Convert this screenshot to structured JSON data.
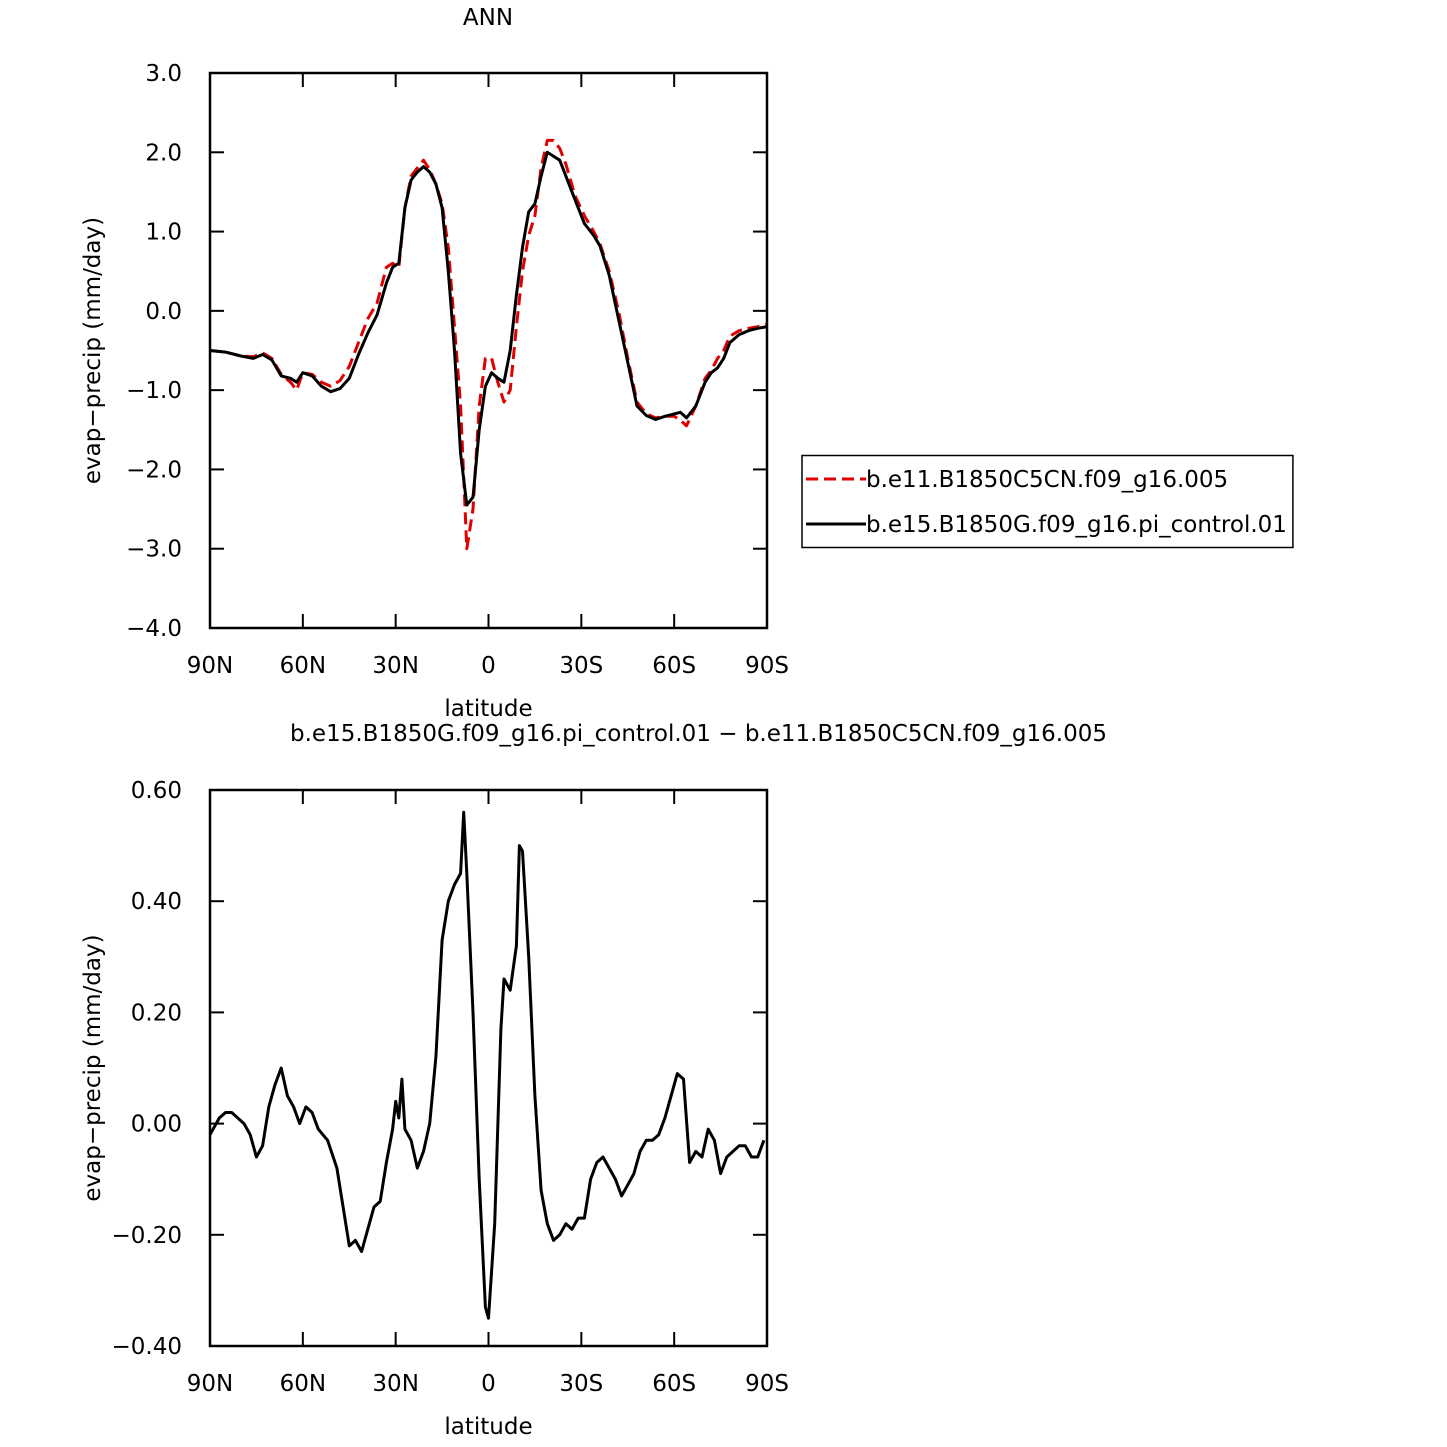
{
  "chart_data": [
    {
      "type": "line",
      "title": "ANN",
      "xlabel": "latitude",
      "ylabel": "evap−precip (mm/day)",
      "x": [
        90,
        85,
        80,
        76,
        73,
        70,
        67,
        64,
        62,
        60,
        57,
        54,
        51,
        48,
        45,
        42,
        39,
        36,
        33,
        31,
        29,
        27,
        25,
        23,
        21,
        19,
        17,
        15,
        13,
        11,
        9,
        7,
        5,
        3,
        1,
        -1,
        -3,
        -5,
        -7,
        -9,
        -11,
        -13,
        -15,
        -17,
        -19,
        -21,
        -23,
        -25,
        -28,
        -31,
        -34,
        -36,
        -39,
        -42,
        -45,
        -48,
        -51,
        -54,
        -57,
        -60,
        -62,
        -64,
        -67,
        -70,
        -72,
        -74,
        -76,
        -78,
        -81,
        -84,
        -87,
        -90
      ],
      "series": [
        {
          "name": "b.e11.B1850C5CN.f09_g16.005",
          "color": "#e00000",
          "linestyle": "dashed",
          "values": [
            -0.5,
            -0.52,
            -0.57,
            -0.58,
            -0.53,
            -0.6,
            -0.8,
            -0.9,
            -1.0,
            -0.78,
            -0.8,
            -0.9,
            -0.95,
            -0.88,
            -0.7,
            -0.4,
            -0.1,
            0.1,
            0.55,
            0.6,
            0.55,
            1.3,
            1.7,
            1.8,
            1.9,
            1.78,
            1.6,
            1.35,
            0.8,
            -0.2,
            -1.2,
            -3.0,
            -2.5,
            -1.2,
            -0.6,
            -0.6,
            -0.9,
            -1.15,
            -1.0,
            -0.2,
            0.5,
            0.95,
            1.2,
            1.8,
            2.15,
            2.15,
            2.05,
            1.85,
            1.45,
            1.2,
            1.0,
            0.85,
            0.5,
            0.0,
            -0.6,
            -1.15,
            -1.3,
            -1.35,
            -1.33,
            -1.33,
            -1.38,
            -1.45,
            -1.2,
            -0.85,
            -0.75,
            -0.6,
            -0.5,
            -0.32,
            -0.25,
            -0.22,
            -0.2,
            -0.17
          ]
        },
        {
          "name": "b.e15.B1850G.f09_g16.pi_control.01",
          "color": "#000000",
          "linestyle": "solid",
          "values": [
            -0.5,
            -0.52,
            -0.57,
            -0.6,
            -0.55,
            -0.62,
            -0.82,
            -0.85,
            -0.9,
            -0.78,
            -0.82,
            -0.95,
            -1.02,
            -0.98,
            -0.85,
            -0.55,
            -0.28,
            -0.05,
            0.35,
            0.55,
            0.6,
            1.3,
            1.65,
            1.75,
            1.82,
            1.75,
            1.6,
            1.3,
            0.5,
            -0.5,
            -1.8,
            -2.45,
            -2.35,
            -1.5,
            -0.95,
            -0.78,
            -0.85,
            -0.9,
            -0.5,
            0.2,
            0.8,
            1.25,
            1.35,
            1.7,
            2.0,
            1.95,
            1.9,
            1.7,
            1.4,
            1.1,
            0.95,
            0.82,
            0.45,
            -0.1,
            -0.65,
            -1.2,
            -1.32,
            -1.37,
            -1.33,
            -1.3,
            -1.28,
            -1.35,
            -1.2,
            -0.9,
            -0.78,
            -0.72,
            -0.6,
            -0.4,
            -0.3,
            -0.25,
            -0.22,
            -0.2
          ]
        }
      ],
      "xlim": [
        90,
        -90
      ],
      "xticks": [
        {
          "value": 90,
          "label": "90N"
        },
        {
          "value": 60,
          "label": "60N"
        },
        {
          "value": 30,
          "label": "30N"
        },
        0,
        {
          "value": -30,
          "label": "30S"
        },
        {
          "value": -60,
          "label": "60S"
        },
        {
          "value": -90,
          "label": "90S"
        }
      ],
      "ylim": [
        -4,
        3
      ],
      "yticks": [
        {
          "value": -4,
          "label": "−4.0"
        },
        {
          "value": -3,
          "label": "−3.0"
        },
        {
          "value": -2,
          "label": "−2.0"
        },
        {
          "value": -1,
          "label": "−1.0"
        },
        {
          "value": 0,
          "label": "0.0"
        },
        {
          "value": 1,
          "label": "1.0"
        },
        {
          "value": 2,
          "label": "2.0"
        },
        {
          "value": 3,
          "label": "3.0"
        }
      ],
      "legend": "right"
    },
    {
      "type": "line",
      "title": "b.e15.B1850G.f09_g16.pi_control.01 − b.e11.B1850C5CN.f09_g16.005",
      "xlabel": "latitude",
      "ylabel": "evap−precip (mm/day)",
      "x": [
        90,
        87,
        85,
        83,
        81,
        79,
        77,
        75,
        73,
        71,
        69,
        67,
        65,
        63,
        61,
        59,
        57,
        55,
        52,
        49,
        47,
        45,
        43,
        41,
        39,
        37,
        35,
        33,
        31,
        30,
        29,
        28,
        27,
        25,
        23,
        21,
        19,
        17,
        15,
        13,
        11,
        9,
        8,
        7,
        5,
        3,
        1,
        0,
        -2,
        -4,
        -5,
        -7,
        -9,
        -10,
        -11,
        -13,
        -15,
        -17,
        -19,
        -21,
        -23,
        -25,
        -27,
        -29,
        -31,
        -33,
        -35,
        -37,
        -39,
        -41,
        -43,
        -45,
        -47,
        -49,
        -51,
        -53,
        -55,
        -57,
        -59,
        -61,
        -63,
        -65,
        -67,
        -69,
        -71,
        -73,
        -75,
        -77,
        -79,
        -81,
        -83,
        -85,
        -87,
        -89
      ],
      "series": [
        {
          "color": "#000000",
          "linestyle": "solid",
          "values": [
            -0.02,
            0.01,
            0.02,
            0.02,
            0.01,
            0,
            -0.02,
            -0.06,
            -0.04,
            0.03,
            0.07,
            0.1,
            0.05,
            0.03,
            0,
            0.03,
            0.02,
            -0.01,
            -0.03,
            -0.08,
            -0.15,
            -0.22,
            -0.21,
            -0.23,
            -0.19,
            -0.15,
            -0.14,
            -0.07,
            -0.01,
            0.04,
            0.01,
            0.08,
            -0.01,
            -0.03,
            -0.08,
            -0.05,
            0,
            0.12,
            0.33,
            0.4,
            0.43,
            0.45,
            0.56,
            0.45,
            0.2,
            -0.1,
            -0.33,
            -0.35,
            -0.18,
            0.17,
            0.26,
            0.24,
            0.32,
            0.5,
            0.49,
            0.3,
            0.05,
            -0.12,
            -0.18,
            -0.21,
            -0.2,
            -0.18,
            -0.19,
            -0.17,
            -0.17,
            -0.1,
            -0.07,
            -0.06,
            -0.08,
            -0.1,
            -0.13,
            -0.11,
            -0.09,
            -0.05,
            -0.03,
            -0.03,
            -0.02,
            0.01,
            0.05,
            0.09,
            0.08,
            -0.07,
            -0.05,
            -0.06,
            -0.01,
            -0.03,
            -0.09,
            -0.06,
            -0.05,
            -0.04,
            -0.04,
            -0.06,
            -0.06,
            -0.03
          ]
        }
      ],
      "xlim": [
        90,
        -90
      ],
      "xticks": [
        {
          "value": 90,
          "label": "90N"
        },
        {
          "value": 60,
          "label": "60N"
        },
        {
          "value": 30,
          "label": "30N"
        },
        0,
        {
          "value": -30,
          "label": "30S"
        },
        {
          "value": -60,
          "label": "60S"
        },
        {
          "value": -90,
          "label": "90S"
        }
      ],
      "ylim": [
        -0.4,
        0.6
      ],
      "yticks": [
        {
          "value": -0.4,
          "label": "−0.40"
        },
        {
          "value": -0.2,
          "label": "−0.20"
        },
        {
          "value": 0,
          "label": "0.00"
        },
        {
          "value": 0.2,
          "label": "0.20"
        },
        {
          "value": 0.4,
          "label": "0.40"
        },
        {
          "value": 0.6,
          "label": "0.60"
        }
      ]
    }
  ]
}
